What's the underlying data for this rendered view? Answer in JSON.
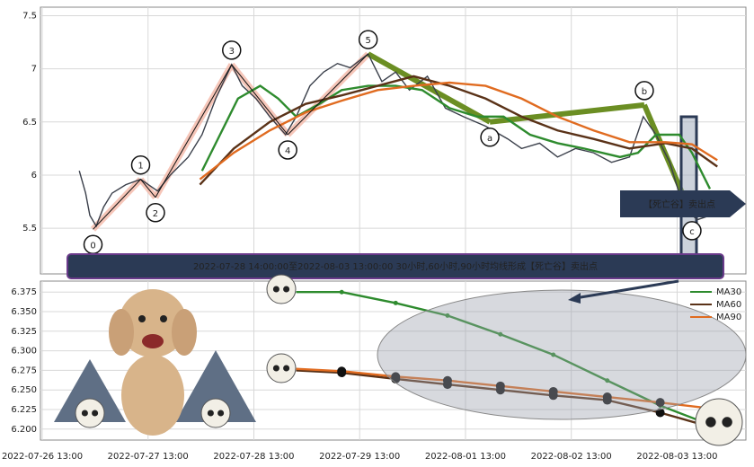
{
  "chart_data": [
    {
      "type": "line",
      "ylim": [
        5.07,
        7.58
      ],
      "yticks": [
        5.5,
        6.0,
        6.5,
        7.0,
        7.5
      ],
      "xlim": [
        -0.017,
        6.65
      ],
      "grid": true,
      "series": [
        {
          "color": "#3a3f4a",
          "x": [
            0.35,
            0.41,
            0.45,
            0.51,
            0.58,
            0.66,
            0.79,
            0.93,
            1.09,
            1.21,
            1.38,
            1.51,
            1.64,
            1.79,
            1.89,
            2.02,
            2.15,
            2.3,
            2.4,
            2.53,
            2.66,
            2.79,
            2.91,
            3.08,
            3.21,
            3.34,
            3.47,
            3.64,
            3.81,
            3.98,
            4.19,
            4.4,
            4.53,
            4.7,
            4.87,
            5.04,
            5.21,
            5.38,
            5.55,
            5.68,
            5.8,
            5.93,
            6.06,
            6.19,
            6.31,
            6.4
          ],
          "values": [
            6.04,
            5.83,
            5.62,
            5.52,
            5.7,
            5.83,
            5.91,
            5.96,
            5.85,
            6.0,
            6.17,
            6.38,
            6.72,
            7.04,
            6.84,
            6.72,
            6.55,
            6.38,
            6.55,
            6.84,
            6.97,
            7.05,
            7.01,
            7.14,
            6.88,
            6.97,
            6.8,
            6.93,
            6.63,
            6.55,
            6.46,
            6.34,
            6.25,
            6.3,
            6.17,
            6.25,
            6.21,
            6.12,
            6.17,
            6.55,
            6.38,
            6.12,
            5.7,
            5.58,
            5.62,
            5.66
          ]
        },
        {
          "color": "#2e8b2e",
          "x": [
            1.51,
            1.68,
            1.85,
            2.06,
            2.23,
            2.4,
            2.62,
            2.83,
            3.08,
            3.34,
            3.59,
            3.85,
            4.11,
            4.36,
            4.61,
            4.87,
            5.12,
            5.46,
            5.63,
            5.8,
            6.02,
            6.14,
            6.31
          ],
          "values": [
            6.04,
            6.38,
            6.72,
            6.84,
            6.72,
            6.55,
            6.67,
            6.8,
            6.84,
            6.84,
            6.8,
            6.63,
            6.55,
            6.55,
            6.38,
            6.3,
            6.25,
            6.17,
            6.21,
            6.38,
            6.38,
            6.21,
            5.87
          ]
        },
        {
          "color": "#5a3218",
          "x": [
            1.49,
            1.81,
            2.15,
            2.49,
            2.83,
            3.17,
            3.51,
            3.85,
            4.19,
            4.53,
            4.87,
            5.21,
            5.55,
            5.89,
            6.14,
            6.38
          ],
          "values": [
            5.91,
            6.25,
            6.5,
            6.67,
            6.75,
            6.84,
            6.93,
            6.84,
            6.72,
            6.55,
            6.42,
            6.34,
            6.25,
            6.3,
            6.25,
            6.08
          ]
        },
        {
          "color": "#e06b20",
          "x": [
            1.49,
            1.81,
            2.15,
            2.49,
            2.83,
            3.17,
            3.51,
            3.85,
            4.19,
            4.53,
            4.87,
            5.21,
            5.55,
            5.89,
            6.14,
            6.38
          ],
          "values": [
            5.96,
            6.21,
            6.42,
            6.59,
            6.7,
            6.8,
            6.84,
            6.87,
            6.84,
            6.72,
            6.55,
            6.42,
            6.31,
            6.31,
            6.29,
            6.14
          ]
        }
      ],
      "waves": {
        "labels": [
          "0",
          "1",
          "2",
          "3",
          "4",
          "5",
          "a",
          "b",
          "c"
        ],
        "x": [
          0.48,
          0.93,
          1.07,
          1.79,
          2.32,
          3.08,
          4.23,
          5.69,
          6.14
        ],
        "values": [
          5.49,
          5.96,
          5.79,
          7.04,
          6.38,
          7.14,
          6.5,
          6.66,
          5.62
        ]
      },
      "annotation": "2022-07-28 14:00:00至2022-08-03 13:00:00 30小时,60小时,90小时均线形成【死亡谷】卖出点",
      "signal": "【死亡谷】卖出点"
    },
    {
      "type": "line",
      "ylim": [
        6.186,
        6.389
      ],
      "yticks": [
        {
          "value": 6.2,
          "label": "6.200"
        },
        {
          "value": 6.225,
          "label": "6.225"
        },
        {
          "value": 6.25,
          "label": "6.250"
        },
        {
          "value": 6.275,
          "label": "6.275"
        },
        {
          "value": 6.3,
          "label": "6.300"
        },
        {
          "value": 6.325,
          "label": "6.325"
        },
        {
          "value": 6.35,
          "label": "6.350"
        },
        {
          "value": 6.375,
          "label": "6.375"
        }
      ],
      "xlim": [
        -0.017,
        6.65
      ],
      "xticks": [
        {
          "value": 0,
          "label": "2022-07-26 13:00"
        },
        {
          "value": 1,
          "label": "2022-07-27 13:00"
        },
        {
          "value": 2,
          "label": "2022-07-28 13:00"
        },
        {
          "value": 3,
          "label": "2022-07-29 13:00"
        },
        {
          "value": 4,
          "label": "2022-08-01 13:00"
        },
        {
          "value": 5,
          "label": "2022-08-02 13:00"
        },
        {
          "value": 6,
          "label": "2022-08-03 13:00"
        }
      ],
      "grid": true,
      "legend": "upper right",
      "series": [
        {
          "name": "MA30",
          "color": "#2e8b2e",
          "x": [
            2.4,
            2.83,
            3.34,
            3.83,
            4.33,
            4.83,
            5.34,
            5.84,
            6.4
          ],
          "values": [
            6.375,
            6.375,
            6.361,
            6.345,
            6.321,
            6.295,
            6.262,
            6.23,
            6.201
          ]
        },
        {
          "name": "MA60",
          "color": "#5a3218",
          "x": [
            2.4,
            2.83,
            3.34,
            3.83,
            4.33,
            4.83,
            5.34,
            5.84,
            6.31
          ],
          "values": [
            6.275,
            6.272,
            6.264,
            6.257,
            6.25,
            6.243,
            6.237,
            6.221,
            6.203
          ]
        },
        {
          "name": "MA90",
          "color": "#e06b20",
          "x": [
            2.4,
            2.83,
            3.34,
            3.83,
            4.33,
            4.83,
            5.34,
            5.84,
            6.4
          ],
          "values": [
            6.277,
            6.274,
            6.267,
            6.262,
            6.255,
            6.248,
            6.241,
            6.234,
            6.225
          ]
        }
      ]
    }
  ]
}
